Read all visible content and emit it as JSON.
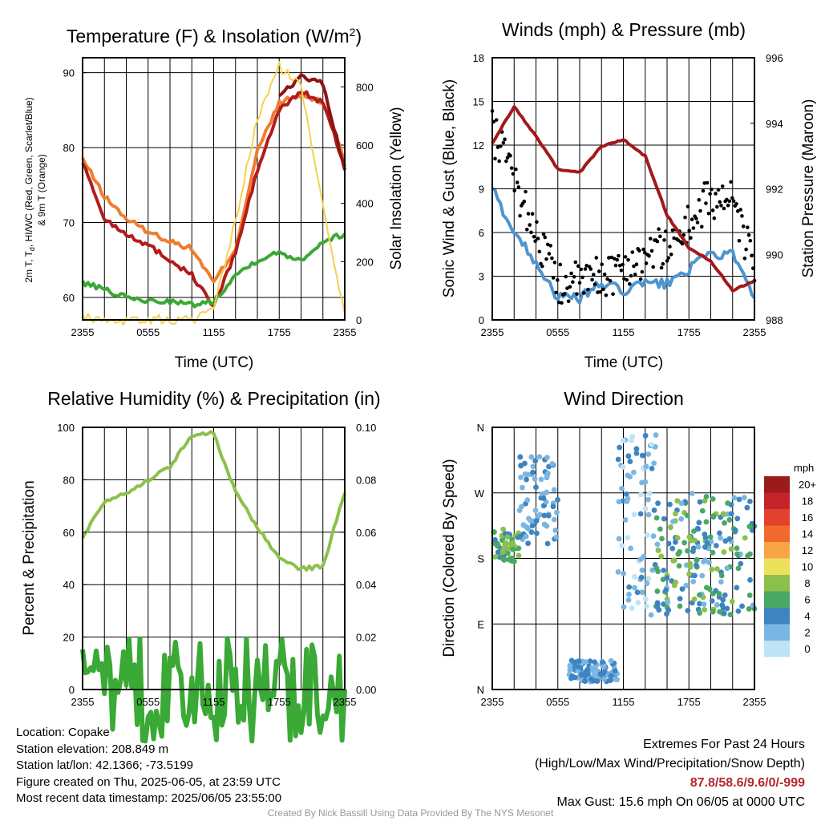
{
  "chart_data": [
    {
      "type": "line",
      "title": "Temperature (F) & Insolation (W/m²)",
      "xlabel": "Time (UTC)",
      "ylabel": "2m T, Td, HI/WC (Red, Green, Scarlet/Blue) & 9m T (Orange)",
      "ylabel2": "Solar Insolation (Yellow)",
      "x_ticks": [
        "2355",
        "0555",
        "1155",
        "1755",
        "2355"
      ],
      "ylim": [
        57,
        92
      ],
      "y_ticks": [
        60,
        70,
        80,
        90
      ],
      "ylim2": [
        0,
        900
      ],
      "y2_ticks": [
        0,
        200,
        400,
        600,
        800
      ],
      "x_hours": [
        0,
        2,
        4,
        6,
        8,
        10,
        12,
        14,
        16,
        18,
        20,
        22,
        24
      ],
      "series": [
        {
          "color": "#f07c2e",
          "values": [
            78.5,
            73.5,
            70.5,
            68.8,
            67.5,
            66.5,
            62.0,
            66.5,
            79.5,
            86.0,
            87.0,
            86.0,
            78.5
          ]
        },
        {
          "color": "#b31b1b",
          "values": [
            78.0,
            70.5,
            68.5,
            67.0,
            65.0,
            63.0,
            58.8,
            66.0,
            77.0,
            85.0,
            87.5,
            86.0,
            77.5
          ]
        },
        {
          "color": "#8f1313",
          "values": [
            null,
            null,
            null,
            null,
            null,
            null,
            null,
            null,
            null,
            87.0,
            89.5,
            88.5,
            77.0
          ]
        },
        {
          "color": "#3aa935",
          "values": [
            62.0,
            61.0,
            60.0,
            59.5,
            59.5,
            59.0,
            59.5,
            63.0,
            65.0,
            66.0,
            65.0,
            67.5,
            68.5
          ]
        },
        {
          "color": "#f4d24e",
          "axis": "y2",
          "values": [
            10,
            0,
            0,
            0,
            0,
            0,
            30,
            340,
            690,
            870,
            800,
            400,
            20
          ]
        }
      ]
    },
    {
      "type": "line",
      "title": "Winds (mph) & Pressure (mb)",
      "xlabel": "Time (UTC)",
      "ylabel": "Sonic Wind & Gust (Blue, Black)",
      "ylabel2": "Station Pressure (Maroon)",
      "x_ticks": [
        "2355",
        "0555",
        "1155",
        "1755",
        "2355"
      ],
      "ylim": [
        0,
        18
      ],
      "y_ticks": [
        0,
        3,
        6,
        9,
        12,
        15,
        18
      ],
      "ylim2": [
        988,
        996
      ],
      "y2_ticks": [
        988,
        990,
        992,
        994,
        996
      ],
      "x_hours": [
        0,
        2,
        4,
        6,
        8,
        10,
        12,
        14,
        16,
        18,
        20,
        22,
        24
      ],
      "series": [
        {
          "color": "#4f95cf",
          "values": [
            9.0,
            6.0,
            4.0,
            1.5,
            1.5,
            2.5,
            2.0,
            2.5,
            2.5,
            3.5,
            4.5,
            4.5,
            1.5
          ]
        },
        {
          "color": "#000000",
          "marker": "dot",
          "values": [
            13.0,
            9.5,
            6.0,
            2.5,
            2.5,
            3.0,
            3.5,
            4.5,
            5.0,
            6.5,
            8.5,
            8.0,
            3.5
          ]
        },
        {
          "color": "#a3191b",
          "axis": "y2",
          "values": [
            993.4,
            994.5,
            993.6,
            992.6,
            992.5,
            993.3,
            993.5,
            993.0,
            991.2,
            990.2,
            989.8,
            988.9,
            989.2
          ]
        }
      ]
    },
    {
      "type": "line",
      "title": "Relative Humidity (%) & Precipitation (in)",
      "ylabel": "Percent & Precipitation",
      "x_ticks": [
        "2355",
        "0555",
        "1155",
        "1755",
        "2355"
      ],
      "ylim": [
        0,
        100
      ],
      "y_ticks": [
        0,
        20,
        40,
        60,
        80,
        100
      ],
      "ylim2": [
        0.0,
        0.1
      ],
      "y2_ticks": [
        "0.00",
        "0.02",
        "0.04",
        "0.06",
        "0.08",
        "0.10"
      ],
      "x_hours": [
        0,
        2,
        4,
        6,
        8,
        10,
        12,
        14,
        16,
        18,
        20,
        22,
        24
      ],
      "series": [
        {
          "color": "#8cc04a",
          "values": [
            58,
            72,
            75,
            80,
            85,
            97,
            98,
            75,
            62,
            50,
            46,
            47,
            75
          ]
        },
        {
          "color": "#3aa935",
          "axis": "y2",
          "values": [
            0,
            0,
            0,
            0,
            0,
            0,
            0,
            0,
            0,
            0,
            0,
            0,
            0
          ]
        }
      ]
    },
    {
      "type": "scatter",
      "title": "Wind Direction",
      "ylabel": "Direction (Colored By Speed)",
      "x_ticks": [
        "2355",
        "0555",
        "1155",
        "1755",
        "2355"
      ],
      "y_ticks": [
        "N",
        "E",
        "S",
        "W",
        "N"
      ],
      "colorbar": {
        "title": "mph",
        "labels": [
          "20+",
          "18",
          "16",
          "14",
          "12",
          "10",
          "8",
          "6",
          "4",
          "2",
          "0"
        ],
        "colors": [
          "#9b1b1b",
          "#c4232a",
          "#e2412e",
          "#f06a2e",
          "#f7a545",
          "#ece15a",
          "#8cc04a",
          "#4aa865",
          "#3d84c0",
          "#7ab6e3",
          "#bfe2f6"
        ]
      },
      "clusters": [
        {
          "hours": [
            0.0,
            2.5
          ],
          "dir": [
            175,
            220
          ],
          "speed": [
            4,
            8
          ]
        },
        {
          "hours": [
            2.5,
            6.0
          ],
          "dir": [
            200,
            320
          ],
          "speed": [
            1,
            5
          ]
        },
        {
          "hours": [
            7.0,
            11.5
          ],
          "dir": [
            10,
            40
          ],
          "speed": [
            1,
            5
          ]
        },
        {
          "hours": [
            11.5,
            15.0
          ],
          "dir": [
            100,
            355
          ],
          "speed": [
            0,
            4
          ]
        },
        {
          "hours": [
            15.0,
            24.0
          ],
          "dir": [
            100,
            270
          ],
          "speed": [
            2,
            8
          ]
        }
      ]
    }
  ],
  "footer": {
    "location": "Location: Copake",
    "elevation": "Station elevation: 208.849 m",
    "latlon": "Station lat/lon: 42.1366; -73.5199",
    "created": "Figure created on Thu, 2025-06-05, at 23:59 UTC",
    "recent": "Most recent data timestamp: 2025/06/05 23:55:00",
    "extremes_title": "Extremes For Past 24 Hours",
    "extremes_legend": "(High/Low/Max Wind/Precipitation/Snow Depth)",
    "extremes_values": "87.8/58.6/9.6/0/-999",
    "max_gust": "Max Gust: 15.6 mph On 06/05 at 0000 UTC",
    "credit": "Created By Nick Bassill Using Data Provided By The NYS Mesonet"
  }
}
